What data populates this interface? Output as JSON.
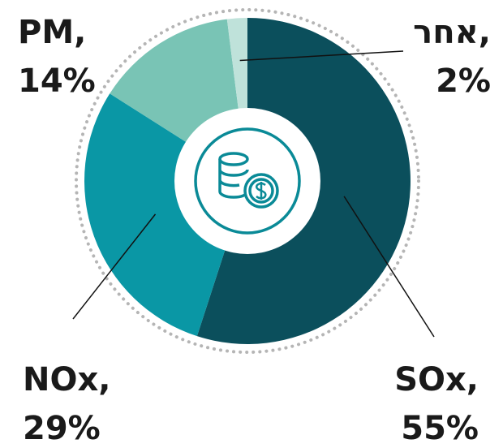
{
  "chart_data": {
    "type": "pie",
    "categories": [
      "SOx,",
      "NOx,",
      "PM,",
      "אחר,"
    ],
    "values": [
      55,
      29,
      14,
      2
    ],
    "value_labels": [
      "55%",
      "29%",
      "14%",
      "2%"
    ],
    "colors": [
      "#0b4f5c",
      "#0a97a5",
      "#79c4b5",
      "#bfe2da"
    ]
  }
}
